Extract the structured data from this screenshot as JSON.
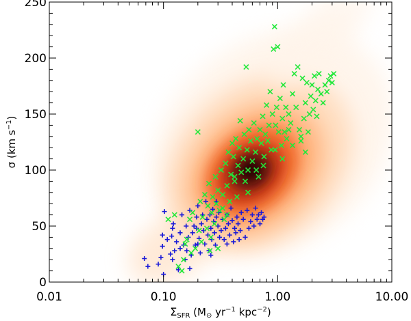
{
  "chart_data": {
    "type": "scatter",
    "title": "",
    "xlabel": "Σ_SFR (M☉ yr⁻¹ kpc⁻²)",
    "ylabel": "σ (km s⁻¹)",
    "xscale": "log",
    "xlim": [
      0.01,
      10.0
    ],
    "ylim": [
      0,
      250
    ],
    "x_ticks": [
      {
        "value": 0.01,
        "label": "0.01"
      },
      {
        "value": 0.1,
        "label": "0.10"
      },
      {
        "value": 1.0,
        "label": "1.00"
      },
      {
        "value": 10.0,
        "label": "10.00"
      }
    ],
    "y_ticks": [
      {
        "value": 0,
        "label": "0"
      },
      {
        "value": 50,
        "label": "50"
      },
      {
        "value": 100,
        "label": "100"
      },
      {
        "value": 150,
        "label": "150"
      },
      {
        "value": 200,
        "label": "200"
      },
      {
        "value": 250,
        "label": "250"
      }
    ],
    "axis_label_parts": {
      "x_sigma": "Σ",
      "x_sub": "SFR",
      "x_units_open": " (M",
      "x_sun": "⊙",
      "x_units_mid": " yr",
      "x_exp1": "−1",
      "x_units_kpc": " kpc",
      "x_exp2": "−2",
      "x_close": ")",
      "y_main": "σ (km s",
      "y_exp": "−1",
      "y_close": ")"
    },
    "density_background": {
      "description_colormap": "white-orange-red-black",
      "peak": [
        0.6,
        100
      ],
      "colors": [
        "#fff4ea",
        "#ffd9b8",
        "#ffaa70",
        "#f26b2a",
        "#c83412",
        "#6e1607",
        "#180402"
      ]
    },
    "series": [
      {
        "name": "blue-plus",
        "marker": "plus",
        "color": "#1a1ad8",
        "points": [
          [
            0.068,
            21
          ],
          [
            0.073,
            14
          ],
          [
            0.09,
            16
          ],
          [
            0.095,
            22
          ],
          [
            0.098,
            42
          ],
          [
            0.098,
            32
          ],
          [
            0.1,
            7
          ],
          [
            0.102,
            63
          ],
          [
            0.115,
            25
          ],
          [
            0.118,
            41
          ],
          [
            0.12,
            20
          ],
          [
            0.122,
            52
          ],
          [
            0.125,
            28
          ],
          [
            0.13,
            36
          ],
          [
            0.135,
            11
          ],
          [
            0.14,
            44
          ],
          [
            0.145,
            60
          ],
          [
            0.15,
            33
          ],
          [
            0.155,
            20
          ],
          [
            0.158,
            50
          ],
          [
            0.16,
            28
          ],
          [
            0.165,
            40
          ],
          [
            0.17,
            64
          ],
          [
            0.175,
            24
          ],
          [
            0.18,
            44
          ],
          [
            0.185,
            50
          ],
          [
            0.19,
            33
          ],
          [
            0.195,
            58
          ],
          [
            0.2,
            68
          ],
          [
            0.205,
            39
          ],
          [
            0.21,
            26
          ],
          [
            0.215,
            52
          ],
          [
            0.22,
            60
          ],
          [
            0.225,
            46
          ],
          [
            0.23,
            34
          ],
          [
            0.235,
            72
          ],
          [
            0.24,
            56
          ],
          [
            0.245,
            42
          ],
          [
            0.25,
            28
          ],
          [
            0.255,
            60
          ],
          [
            0.26,
            48
          ],
          [
            0.265,
            38
          ],
          [
            0.27,
            65
          ],
          [
            0.275,
            54
          ],
          [
            0.28,
            44
          ],
          [
            0.285,
            33
          ],
          [
            0.29,
            58
          ],
          [
            0.3,
            50
          ],
          [
            0.305,
            62
          ],
          [
            0.31,
            40
          ],
          [
            0.32,
            46
          ],
          [
            0.33,
            56
          ],
          [
            0.34,
            38
          ],
          [
            0.35,
            48
          ],
          [
            0.36,
            60
          ],
          [
            0.37,
            52
          ],
          [
            0.38,
            42
          ],
          [
            0.39,
            66
          ],
          [
            0.4,
            55
          ],
          [
            0.41,
            36
          ],
          [
            0.42,
            48
          ],
          [
            0.43,
            44
          ],
          [
            0.44,
            58
          ],
          [
            0.45,
            52
          ],
          [
            0.47,
            46
          ],
          [
            0.48,
            62
          ],
          [
            0.5,
            56
          ],
          [
            0.52,
            40
          ],
          [
            0.54,
            64
          ],
          [
            0.56,
            48
          ],
          [
            0.58,
            54
          ],
          [
            0.6,
            60
          ],
          [
            0.62,
            50
          ],
          [
            0.64,
            66
          ],
          [
            0.66,
            56
          ],
          [
            0.68,
            60
          ],
          [
            0.7,
            52
          ],
          [
            0.72,
            62
          ],
          [
            0.74,
            56
          ],
          [
            0.76,
            58
          ],
          [
            0.2,
            34
          ],
          [
            0.12,
            48
          ],
          [
            0.14,
            30
          ],
          [
            0.108,
            38
          ],
          [
            0.29,
            72
          ],
          [
            0.36,
            34
          ],
          [
            0.46,
            38
          ],
          [
            0.26,
            24
          ],
          [
            0.17,
            12
          ],
          [
            0.195,
            48
          ]
        ]
      },
      {
        "name": "green-cross",
        "marker": "cross",
        "color": "#22e83a",
        "points": [
          [
            0.135,
            14
          ],
          [
            0.145,
            10
          ],
          [
            0.15,
            20
          ],
          [
            0.16,
            38
          ],
          [
            0.17,
            56
          ],
          [
            0.175,
            26
          ],
          [
            0.18,
            62
          ],
          [
            0.19,
            30
          ],
          [
            0.2,
            134
          ],
          [
            0.205,
            46
          ],
          [
            0.21,
            72
          ],
          [
            0.215,
            36
          ],
          [
            0.22,
            58
          ],
          [
            0.23,
            78
          ],
          [
            0.24,
            48
          ],
          [
            0.245,
            68
          ],
          [
            0.25,
            88
          ],
          [
            0.26,
            40
          ],
          [
            0.265,
            62
          ],
          [
            0.27,
            76
          ],
          [
            0.28,
            52
          ],
          [
            0.285,
            94
          ],
          [
            0.29,
            70
          ],
          [
            0.3,
            82
          ],
          [
            0.31,
            64
          ],
          [
            0.32,
            100
          ],
          [
            0.33,
            78
          ],
          [
            0.34,
            56
          ],
          [
            0.35,
            106
          ],
          [
            0.36,
            86
          ],
          [
            0.37,
            116
          ],
          [
            0.38,
            72
          ],
          [
            0.39,
            96
          ],
          [
            0.4,
            124
          ],
          [
            0.41,
            112
          ],
          [
            0.42,
            90
          ],
          [
            0.43,
            128
          ],
          [
            0.44,
            76
          ],
          [
            0.45,
            104
          ],
          [
            0.46,
            120
          ],
          [
            0.47,
            144
          ],
          [
            0.48,
            98
          ],
          [
            0.5,
            110
          ],
          [
            0.51,
            132
          ],
          [
            0.52,
            90
          ],
          [
            0.53,
            192
          ],
          [
            0.54,
            118
          ],
          [
            0.55,
            100
          ],
          [
            0.56,
            136
          ],
          [
            0.58,
            126
          ],
          [
            0.6,
            108
          ],
          [
            0.62,
            142
          ],
          [
            0.64,
            116
          ],
          [
            0.66,
            128
          ],
          [
            0.68,
            94
          ],
          [
            0.7,
            136
          ],
          [
            0.72,
            124
          ],
          [
            0.74,
            148
          ],
          [
            0.76,
            112
          ],
          [
            0.78,
            132
          ],
          [
            0.8,
            158
          ],
          [
            0.82,
            126
          ],
          [
            0.84,
            140
          ],
          [
            0.86,
            170
          ],
          [
            0.88,
            118
          ],
          [
            0.9,
            150
          ],
          [
            0.92,
            208
          ],
          [
            0.94,
            228
          ],
          [
            0.96,
            140
          ],
          [
            0.98,
            156
          ],
          [
            1.0,
            210
          ],
          [
            1.02,
            134
          ],
          [
            1.05,
            164
          ],
          [
            1.08,
            122
          ],
          [
            1.1,
            146
          ],
          [
            1.12,
            176
          ],
          [
            1.15,
            134
          ],
          [
            1.18,
            156
          ],
          [
            1.2,
            128
          ],
          [
            1.25,
            150
          ],
          [
            1.3,
            142
          ],
          [
            1.35,
            168
          ],
          [
            1.4,
            186
          ],
          [
            1.45,
            156
          ],
          [
            1.5,
            192
          ],
          [
            1.55,
            136
          ],
          [
            1.6,
            130
          ],
          [
            1.65,
            182
          ],
          [
            1.7,
            146
          ],
          [
            1.75,
            160
          ],
          [
            1.8,
            178
          ],
          [
            1.85,
            134
          ],
          [
            1.9,
            150
          ],
          [
            1.95,
            166
          ],
          [
            2.0,
            176
          ],
          [
            2.05,
            154
          ],
          [
            2.1,
            184
          ],
          [
            2.15,
            162
          ],
          [
            2.2,
            148
          ],
          [
            2.25,
            172
          ],
          [
            2.3,
            186
          ],
          [
            2.4,
            168
          ],
          [
            2.5,
            160
          ],
          [
            2.6,
            176
          ],
          [
            2.7,
            170
          ],
          [
            2.8,
            180
          ],
          [
            2.9,
            184
          ],
          [
            3.0,
            178
          ],
          [
            3.1,
            186
          ],
          [
            0.11,
            56
          ],
          [
            0.125,
            60
          ],
          [
            0.155,
            34
          ],
          [
            0.255,
            28
          ],
          [
            0.3,
            30
          ],
          [
            0.33,
            66
          ],
          [
            0.36,
            60
          ],
          [
            0.42,
            94
          ],
          [
            0.55,
            80
          ],
          [
            0.65,
            100
          ],
          [
            0.75,
            104
          ],
          [
            1.1,
            110
          ],
          [
            1.35,
            122
          ],
          [
            1.6,
            126
          ],
          [
            1.75,
            116
          ],
          [
            0.95,
            118
          ],
          [
            1.25,
            136
          ]
        ]
      }
    ]
  }
}
